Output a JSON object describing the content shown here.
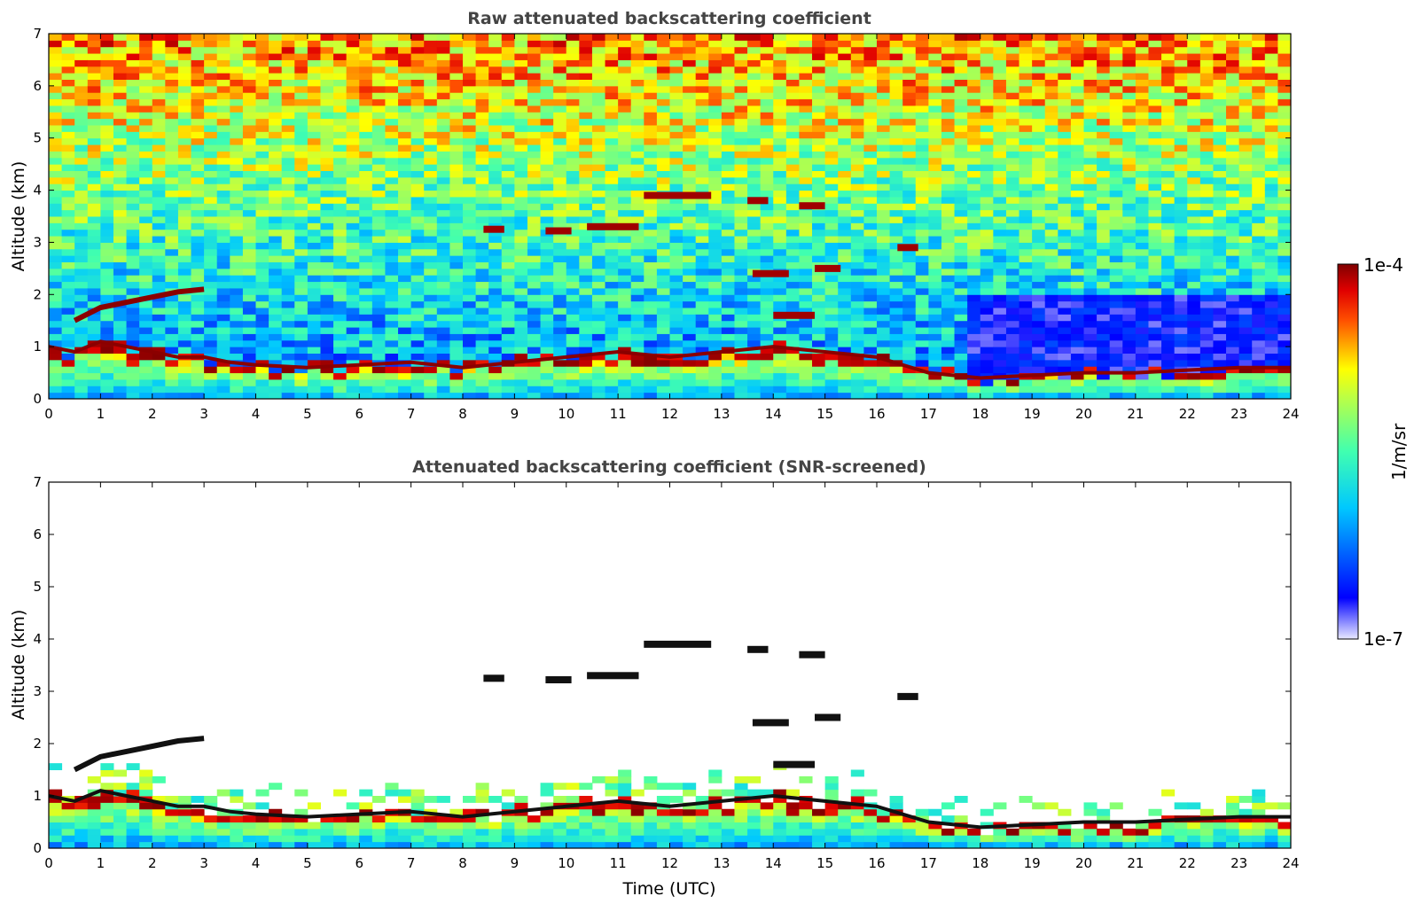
{
  "chart_data": [
    {
      "type": "heatmap",
      "title": "Raw attenuated backscattering coefficient",
      "xlabel": "",
      "ylabel": "Altitude (km)",
      "xlim": [
        0,
        24
      ],
      "ylim": [
        0,
        7
      ],
      "xticks": [
        "0",
        "1",
        "2",
        "3",
        "4",
        "5",
        "6",
        "7",
        "8",
        "9",
        "10",
        "11",
        "12",
        "13",
        "14",
        "15",
        "16",
        "17",
        "18",
        "19",
        "20",
        "21",
        "22",
        "23",
        "24"
      ],
      "yticks": [
        "0",
        "1",
        "2",
        "3",
        "4",
        "5",
        "6",
        "7"
      ],
      "boundary_layer": {
        "time": [
          0,
          0.5,
          1,
          1.5,
          2,
          2.5,
          3,
          3.5,
          4,
          5,
          6,
          7,
          8,
          9,
          10,
          11,
          12,
          13,
          14,
          15,
          16,
          17,
          18,
          19,
          20,
          21,
          22,
          23,
          24
        ],
        "top_km": [
          1.0,
          0.9,
          1.1,
          1.0,
          0.9,
          0.8,
          0.8,
          0.7,
          0.65,
          0.6,
          0.65,
          0.7,
          0.6,
          0.7,
          0.8,
          0.9,
          0.8,
          0.9,
          1.0,
          0.9,
          0.8,
          0.5,
          0.4,
          0.45,
          0.5,
          0.5,
          0.55,
          0.6,
          0.6
        ]
      },
      "elevated_layer": {
        "time": [
          0.5,
          1,
          1.5,
          2,
          2.5,
          3
        ],
        "height_km": [
          1.5,
          1.75,
          1.85,
          1.95,
          2.05,
          2.1
        ]
      },
      "clouds": [
        {
          "t0": 8.4,
          "t1": 8.8,
          "z": 3.25
        },
        {
          "t0": 9.6,
          "t1": 10.1,
          "z": 3.22
        },
        {
          "t0": 10.4,
          "t1": 11.4,
          "z": 3.3
        },
        {
          "t0": 11.5,
          "t1": 12.8,
          "z": 3.9
        },
        {
          "t0": 13.5,
          "t1": 13.9,
          "z": 3.8
        },
        {
          "t0": 14.5,
          "t1": 15.0,
          "z": 3.7
        },
        {
          "t0": 13.6,
          "t1": 14.3,
          "z": 2.4
        },
        {
          "t0": 14.8,
          "t1": 15.3,
          "z": 2.5
        },
        {
          "t0": 14.0,
          "t1": 14.8,
          "z": 1.6
        },
        {
          "t0": 16.4,
          "t1": 16.8,
          "z": 2.9
        }
      ]
    },
    {
      "type": "heatmap",
      "title": "Attenuated backscattering coefficient (SNR-screened)",
      "xlabel": "Time (UTC)",
      "ylabel": "Altitude (km)",
      "xlim": [
        0,
        24
      ],
      "ylim": [
        0,
        7
      ],
      "xticks": [
        "0",
        "1",
        "2",
        "3",
        "4",
        "5",
        "6",
        "7",
        "8",
        "9",
        "10",
        "11",
        "12",
        "13",
        "14",
        "15",
        "16",
        "17",
        "18",
        "19",
        "20",
        "21",
        "22",
        "23",
        "24"
      ],
      "yticks": [
        "0",
        "1",
        "2",
        "3",
        "4",
        "5",
        "6",
        "7"
      ]
    }
  ],
  "colorbar": {
    "label": "1/m/sr",
    "max_label": "1e-4",
    "min_label": "1e-7",
    "scale": "log",
    "range": [
      1e-07,
      0.0001
    ],
    "colormap": "jet"
  },
  "colors": {
    "title": "#444444",
    "low": "#0000ff",
    "high": "#800000"
  }
}
